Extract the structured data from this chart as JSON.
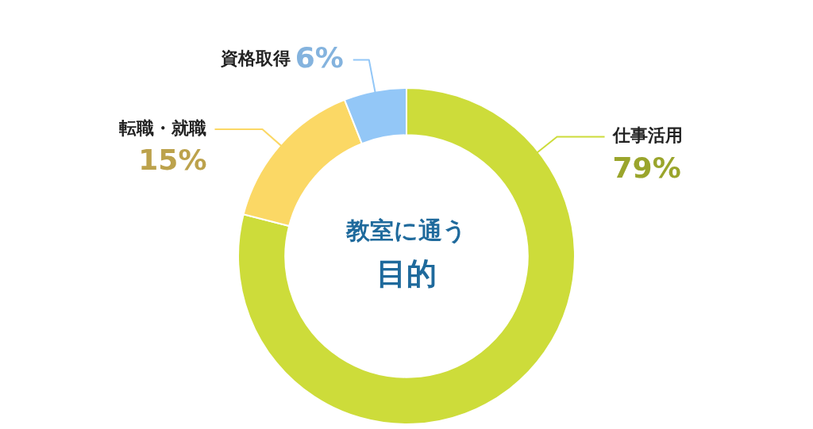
{
  "chart_data": {
    "type": "donut",
    "title": "教室に通う",
    "subtitle": "目的",
    "categories": [
      "仕事活用",
      "転職・就職",
      "資格取得"
    ],
    "values": [
      79,
      15,
      6
    ],
    "colors": [
      "#cddc3a",
      "#fbd865",
      "#93c7f7"
    ],
    "value_labels": [
      "79%",
      "15%",
      "6%"
    ],
    "legend": false
  }
}
